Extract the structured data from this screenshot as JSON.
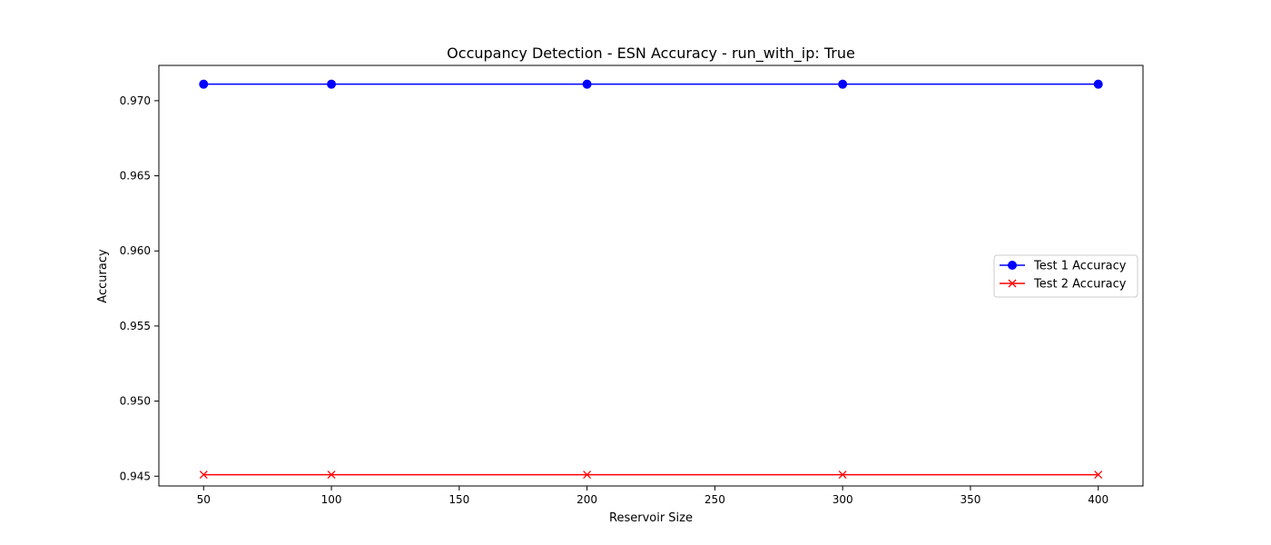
{
  "chart_data": {
    "type": "line",
    "title": "Occupancy Detection - ESN Accuracy - run_with_ip: True",
    "xlabel": "Reservoir Size",
    "ylabel": "Accuracy",
    "x": [
      50,
      100,
      200,
      300,
      400
    ],
    "xlim": [
      32.5,
      417.5
    ],
    "ylim": [
      0.94435,
      0.97235
    ],
    "xticks": [
      50,
      100,
      150,
      200,
      250,
      300,
      350,
      400
    ],
    "yticks": [
      0.945,
      0.95,
      0.955,
      0.96,
      0.965,
      0.97
    ],
    "ytick_labels": [
      "0.945",
      "0.950",
      "0.955",
      "0.960",
      "0.965",
      "0.970"
    ],
    "grid": false,
    "legend_position": "center-right",
    "series": [
      {
        "name": "Test 1 Accuracy",
        "values": [
          0.9711,
          0.9711,
          0.9711,
          0.9711,
          0.9711
        ],
        "color": "#0000ff",
        "marker": "circle"
      },
      {
        "name": "Test 2 Accuracy",
        "values": [
          0.9451,
          0.9451,
          0.9451,
          0.9451,
          0.9451
        ],
        "color": "#ff0000",
        "marker": "x"
      }
    ]
  }
}
